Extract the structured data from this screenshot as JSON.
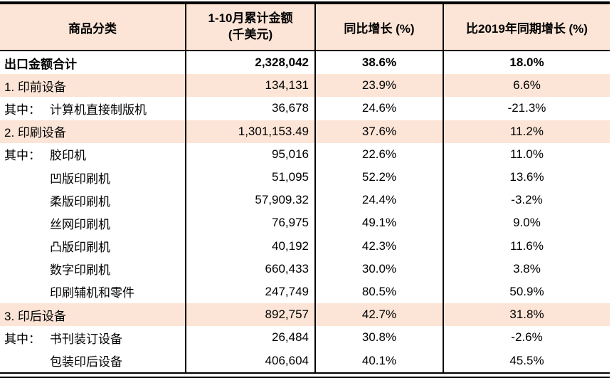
{
  "meta": {
    "accent_color": "#fce4d6",
    "border_color": "#000000",
    "text_color": "#000000"
  },
  "table": {
    "header": {
      "col1": "商品分类",
      "col2_line1": "1-10月累计金额",
      "col2_line2": "(千美元)",
      "col3": "同比增长 (%)",
      "col4": "比2019年同期增长 (%)"
    },
    "rows": [
      {
        "prefix": "",
        "label": "出口金额合计",
        "amount": "2,328,042",
        "yoy": "38.6%",
        "vs2019": "18.0%"
      },
      {
        "prefix": "",
        "label": "1. 印前设备",
        "amount": "134,131",
        "yoy": "23.9%",
        "vs2019": "6.6%"
      },
      {
        "prefix": "其中：",
        "label": "计算机直接制版机",
        "amount": "36,678",
        "yoy": "24.6%",
        "vs2019": "-21.3%"
      },
      {
        "prefix": "",
        "label": "2. 印刷设备",
        "amount": "1,301,153.49",
        "yoy": "37.6%",
        "vs2019": "11.2%"
      },
      {
        "prefix": "其中：",
        "label": "胶印机",
        "amount": "95,016",
        "yoy": "22.6%",
        "vs2019": "11.0%"
      },
      {
        "prefix": "",
        "label": "凹版印刷机",
        "amount": "51,095",
        "yoy": "52.2%",
        "vs2019": "13.6%"
      },
      {
        "prefix": "",
        "label": "柔版印刷机",
        "amount": "57,909.32",
        "yoy": "24.4%",
        "vs2019": "-3.2%"
      },
      {
        "prefix": "",
        "label": "丝网印刷机",
        "amount": "76,975",
        "yoy": "49.1%",
        "vs2019": "9.0%"
      },
      {
        "prefix": "",
        "label": "凸版印刷机",
        "amount": "40,192",
        "yoy": "42.3%",
        "vs2019": "11.6%"
      },
      {
        "prefix": "",
        "label": "数字印刷机",
        "amount": "660,433",
        "yoy": "30.0%",
        "vs2019": "3.8%"
      },
      {
        "prefix": "",
        "label": "印刷辅机和零件",
        "amount": "247,749",
        "yoy": "80.5%",
        "vs2019": "50.9%"
      },
      {
        "prefix": "",
        "label": "3. 印后设备",
        "amount": "892,757",
        "yoy": "42.7%",
        "vs2019": "31.8%"
      },
      {
        "prefix": "其中：",
        "label": "书刊装订设备",
        "amount": "26,484",
        "yoy": "30.8%",
        "vs2019": "-2.6%"
      },
      {
        "prefix": "",
        "label": "包装印后设备",
        "amount": "406,604",
        "yoy": "40.1%",
        "vs2019": "45.5%"
      }
    ]
  },
  "chart_data": {
    "type": "table",
    "title": "",
    "columns": [
      "商品分类",
      "1-10月累计金额(千美元)",
      "同比增长 (%)",
      "比2019年同期增长 (%)"
    ],
    "rows": [
      [
        "出口金额合计",
        2328042,
        38.6,
        18.0
      ],
      [
        "1. 印前设备",
        134131,
        23.9,
        6.6
      ],
      [
        "其中：计算机直接制版机",
        36678,
        24.6,
        -21.3
      ],
      [
        "2. 印刷设备",
        1301153.49,
        37.6,
        11.2
      ],
      [
        "其中：胶印机",
        95016,
        22.6,
        11.0
      ],
      [
        "凹版印刷机",
        51095,
        52.2,
        13.6
      ],
      [
        "柔版印刷机",
        57909.32,
        24.4,
        -3.2
      ],
      [
        "丝网印刷机",
        76975,
        49.1,
        9.0
      ],
      [
        "凸版印刷机",
        40192,
        42.3,
        11.6
      ],
      [
        "数字印刷机",
        660433,
        30.0,
        3.8
      ],
      [
        "印刷辅机和零件",
        247749,
        80.5,
        50.9
      ],
      [
        "3. 印后设备",
        892757,
        42.7,
        31.8
      ],
      [
        "其中：书刊装订设备",
        26484,
        30.8,
        -2.6
      ],
      [
        "包装印后设备",
        406604,
        40.1,
        45.5
      ]
    ]
  }
}
